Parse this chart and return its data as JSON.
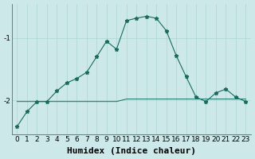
{
  "xlabel": "Humidex (Indice chaleur)",
  "ylabel": "",
  "bg_color": "#cce8e8",
  "line_color": "#1a6b5e",
  "marker": "*",
  "xlim": [
    -0.5,
    23.5
  ],
  "ylim": [
    -2.55,
    -0.45
  ],
  "yticks": [
    -2,
    -1
  ],
  "xticks": [
    0,
    1,
    2,
    3,
    4,
    5,
    6,
    7,
    8,
    9,
    10,
    11,
    12,
    13,
    14,
    15,
    16,
    17,
    18,
    19,
    20,
    21,
    22,
    23
  ],
  "humidex_y": [
    -2.42,
    -2.18,
    -2.02,
    -2.02,
    -1.85,
    -1.72,
    -1.65,
    -1.55,
    -1.3,
    -1.05,
    -1.18,
    -0.72,
    -0.68,
    -0.65,
    -0.68,
    -0.88,
    -1.28,
    -1.62,
    -1.95,
    -2.02,
    -1.88,
    -1.82,
    -1.95,
    -2.02
  ],
  "flat_y": [
    -2.02,
    -2.02,
    -2.02,
    -2.02,
    -2.02,
    -2.02,
    -2.02,
    -2.02,
    -2.02,
    -2.02,
    -2.02,
    -1.98,
    -1.98,
    -1.98,
    -1.98,
    -1.98,
    -1.98,
    -1.98,
    -1.98,
    -1.98,
    -1.98,
    -1.98,
    -1.98,
    -1.98
  ],
  "grid_color": "#aad4d4",
  "tick_fontsize": 6.5,
  "label_fontsize": 8,
  "xlabel_fontfamily": "monospace",
  "xlabel_fontweight": "bold"
}
